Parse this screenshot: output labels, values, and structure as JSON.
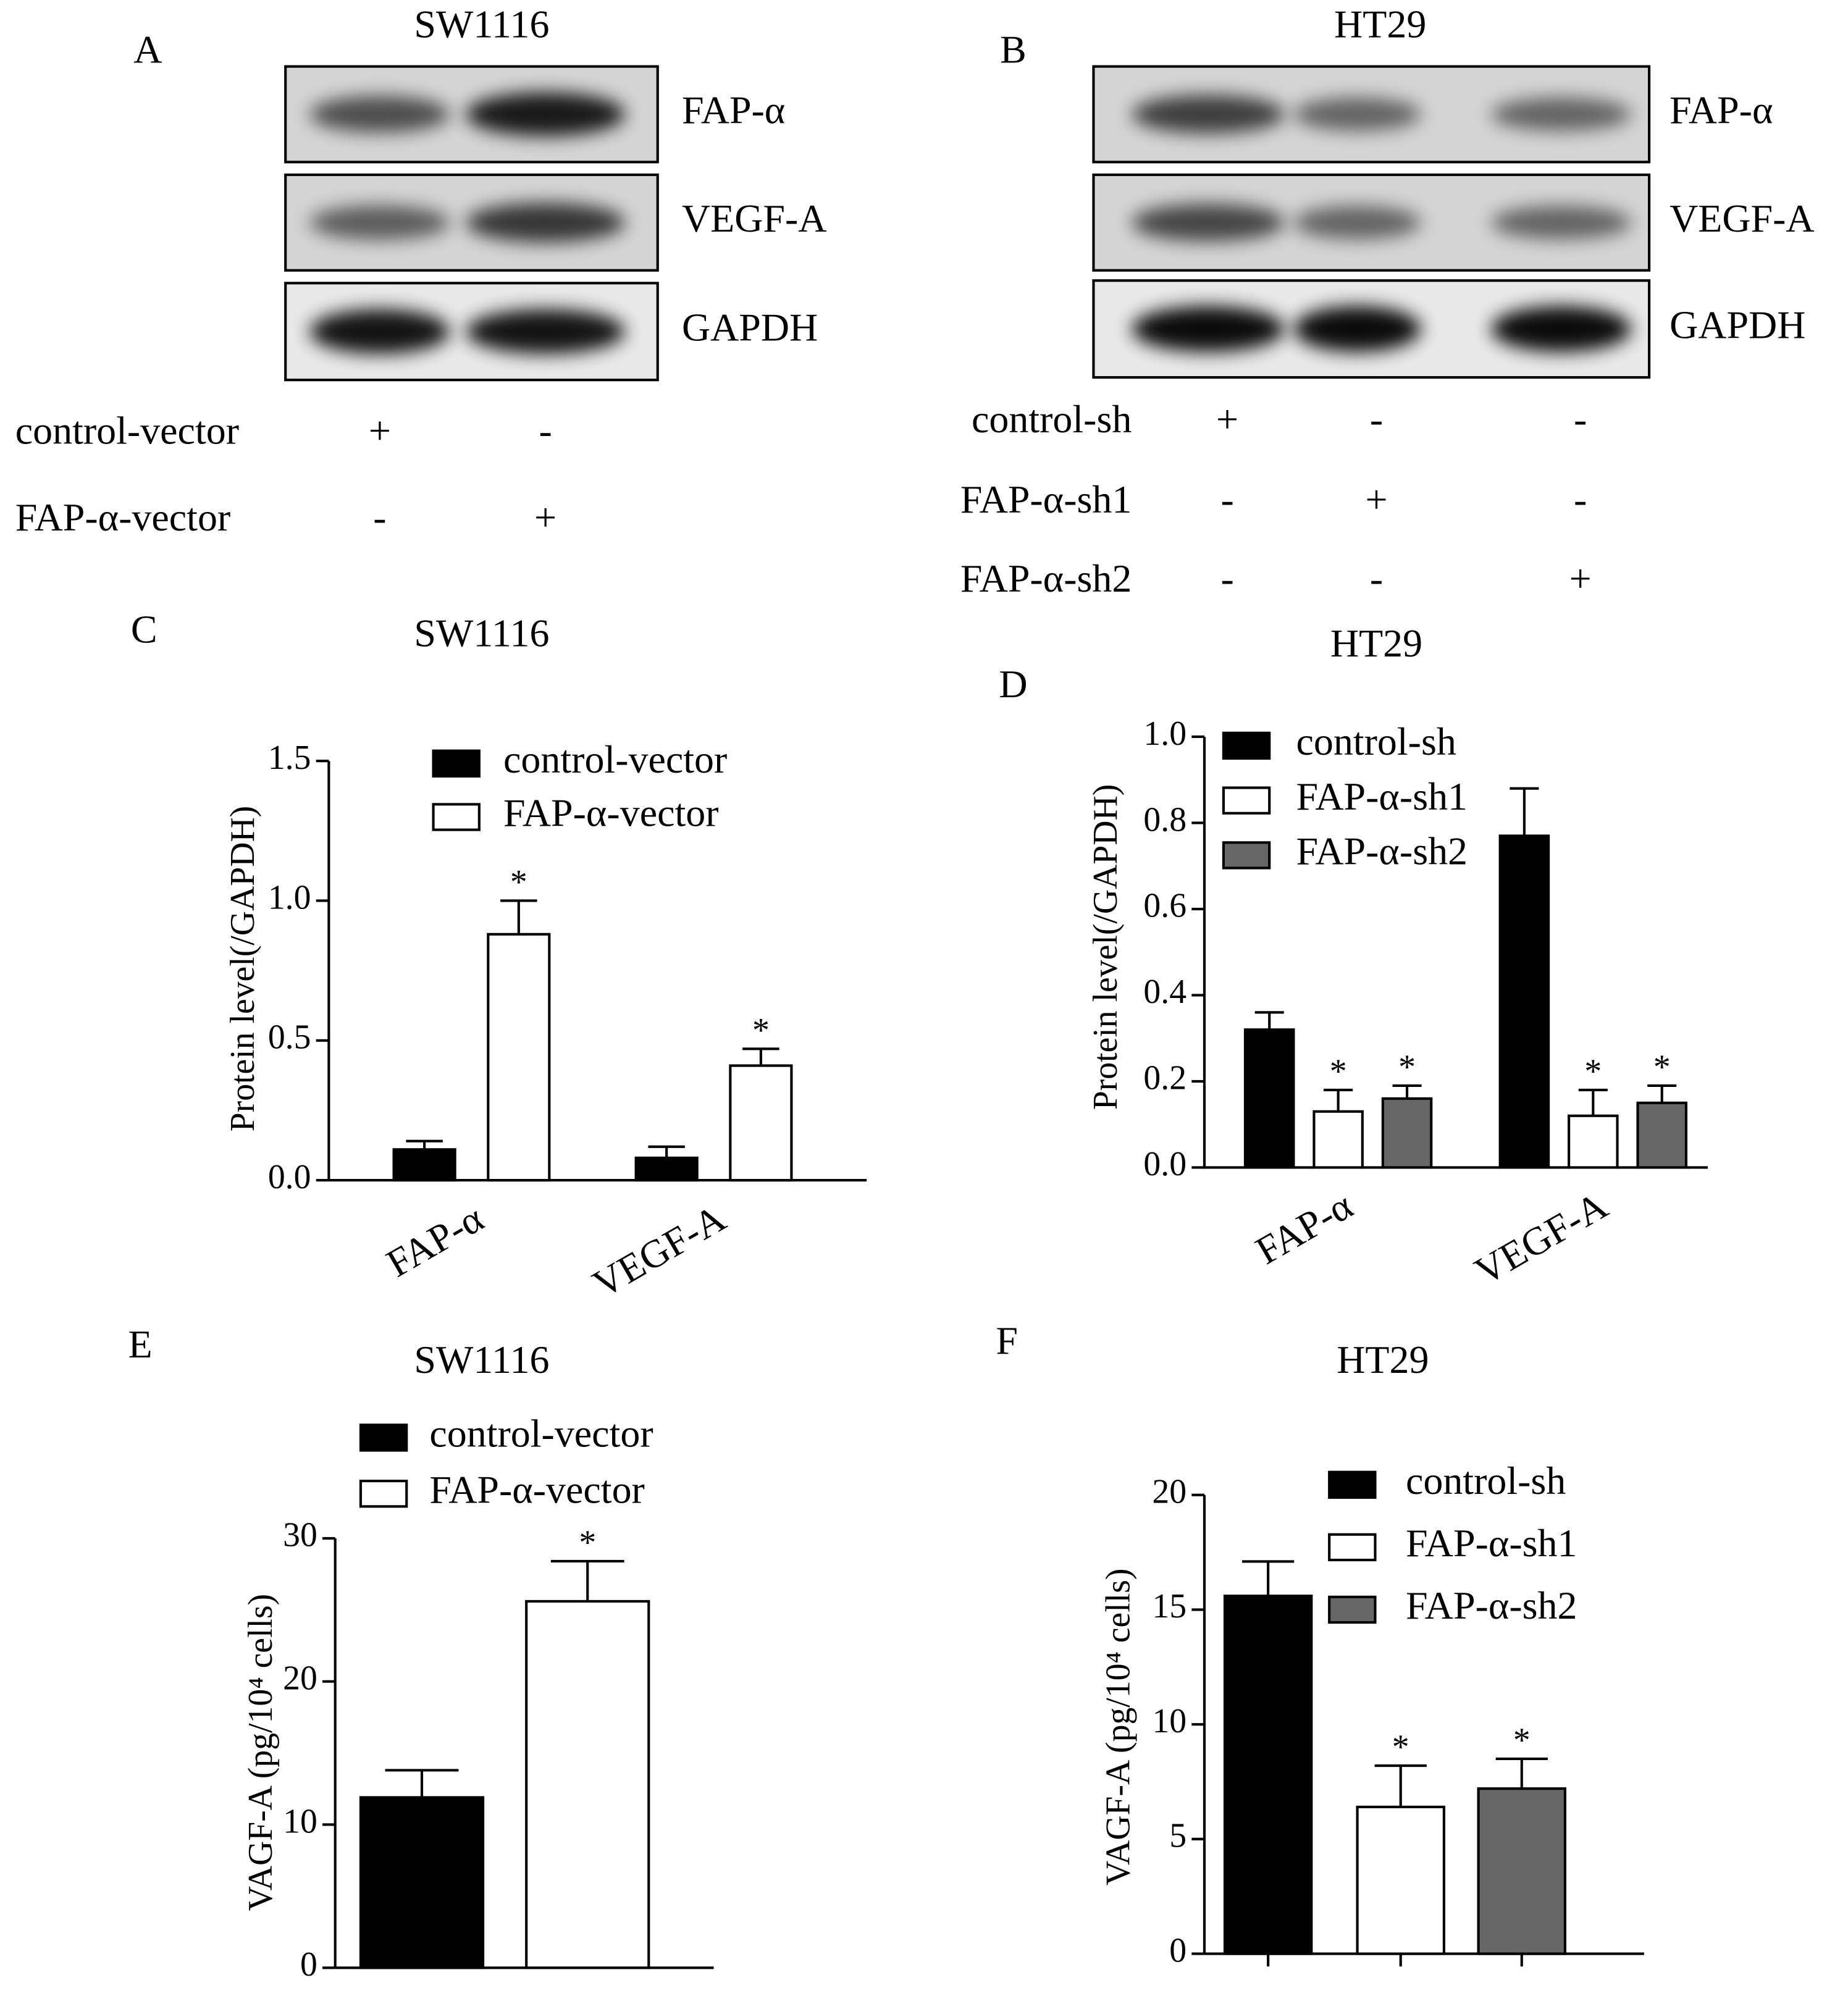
{
  "blots": [
    {
      "label": "A",
      "title": "SW1116",
      "proteins": [
        "FAP-α",
        "VEGF-A",
        "GAPDH"
      ],
      "conditions": [
        {
          "name": "control-vector",
          "lanes": [
            "+",
            "-"
          ]
        },
        {
          "name": "FAP-α-vector",
          "lanes": [
            "-",
            "+"
          ]
        }
      ]
    },
    {
      "label": "B",
      "title": "HT29",
      "proteins": [
        "FAP-α",
        "VEGF-A",
        "GAPDH"
      ],
      "conditions": [
        {
          "name": "control-sh",
          "lanes": [
            "+",
            "-",
            "-"
          ]
        },
        {
          "name": "FAP-α-sh1",
          "lanes": [
            "-",
            "+",
            "-"
          ]
        },
        {
          "name": "FAP-α-sh2",
          "lanes": [
            "-",
            "-",
            "+"
          ]
        }
      ]
    }
  ],
  "chart_data": [
    {
      "type": "bar",
      "label": "C",
      "title": "SW1116",
      "ylabel": "Protein level(/GAPDH)",
      "categories": [
        "FAP-α",
        "VEGF-A"
      ],
      "series": [
        {
          "name": "control-vector",
          "color": "#000000",
          "values": [
            0.11,
            0.08
          ],
          "errors": [
            0.03,
            0.04
          ],
          "significance": [
            null,
            null
          ]
        },
        {
          "name": "FAP-α-vector",
          "color": "#ffffff",
          "values": [
            0.88,
            0.41
          ],
          "errors": [
            0.12,
            0.06
          ],
          "significance": [
            "*",
            "*"
          ]
        }
      ],
      "ylim": [
        0,
        1.5
      ],
      "yticks": [
        {
          "value": 0,
          "label": "0.0"
        },
        0.5,
        {
          "value": 1,
          "label": "1.0"
        },
        1.5
      ]
    },
    {
      "type": "bar",
      "label": "D",
      "title": "HT29",
      "ylabel": "Protein level(/GAPDH)",
      "categories": [
        "FAP-α",
        "VEGF-A"
      ],
      "series": [
        {
          "name": "control-sh",
          "color": "#000000",
          "values": [
            0.32,
            0.77
          ],
          "errors": [
            0.04,
            0.11
          ],
          "significance": [
            null,
            null
          ]
        },
        {
          "name": "FAP-α-sh1",
          "color": "#ffffff",
          "values": [
            0.13,
            0.12
          ],
          "errors": [
            0.05,
            0.06
          ],
          "significance": [
            "*",
            "*"
          ]
        },
        {
          "name": "FAP-α-sh2",
          "color": "#666666",
          "values": [
            0.16,
            0.15
          ],
          "errors": [
            0.03,
            0.04
          ],
          "significance": [
            "*",
            "*"
          ]
        }
      ],
      "ylim": [
        0,
        1
      ],
      "yticks": [
        {
          "value": 0,
          "label": "0.0"
        },
        0.2,
        0.4,
        0.6,
        0.8,
        {
          "value": 1,
          "label": "1.0"
        }
      ]
    },
    {
      "type": "bar",
      "label": "E",
      "title": "SW1116",
      "ylabel": "VAGF-A (pg/10⁴ cells)",
      "series": [
        {
          "name": "control-vector",
          "color": "#000000",
          "values": [
            11.9
          ],
          "errors": [
            1.9
          ],
          "significance": [
            null
          ]
        },
        {
          "name": "FAP-α-vector",
          "color": "#ffffff",
          "values": [
            25.6
          ],
          "errors": [
            2.8
          ],
          "significance": [
            "*"
          ]
        }
      ],
      "ylim": [
        0,
        30
      ],
      "yticks": [
        0,
        10,
        20,
        30
      ]
    },
    {
      "type": "bar",
      "label": "F",
      "title": "HT29",
      "ylabel": "VAGF-A (pg/10⁴ cells)",
      "series": [
        {
          "name": "control-sh",
          "color": "#000000",
          "values": [
            15.6
          ],
          "errors": [
            1.5
          ],
          "significance": [
            null
          ]
        },
        {
          "name": "FAP-α-sh1",
          "color": "#ffffff",
          "values": [
            6.4
          ],
          "errors": [
            1.8
          ],
          "significance": [
            "*"
          ]
        },
        {
          "name": "FAP-α-sh2",
          "color": "#666666",
          "values": [
            7.2
          ],
          "errors": [
            1.3
          ],
          "significance": [
            "*"
          ]
        }
      ],
      "ylim": [
        0,
        20
      ],
      "yticks": [
        0,
        5,
        10,
        15,
        20
      ]
    }
  ]
}
